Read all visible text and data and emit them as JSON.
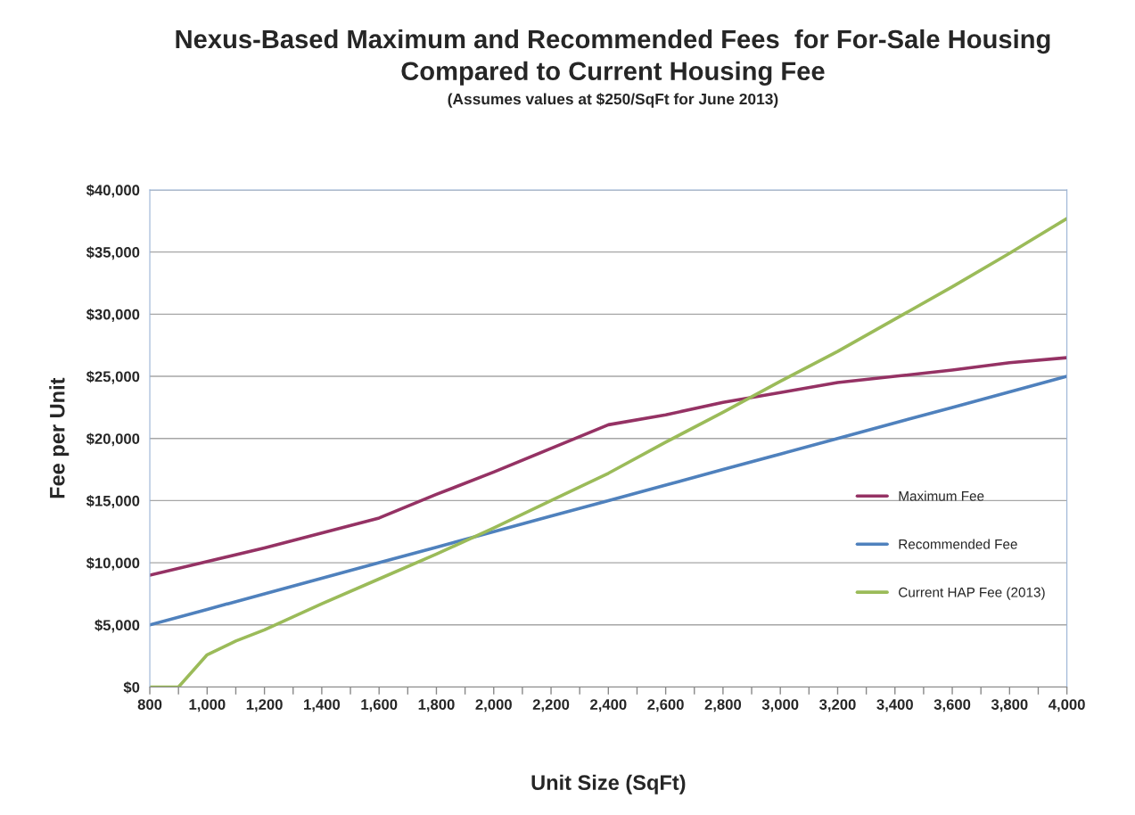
{
  "chart_data": {
    "type": "line",
    "title": "Nexus-Based Maximum and Recommended Fees  for For-Sale Housing\nCompared to Current Housing Fee",
    "subtitle": "(Assumes values at $250/SqFt for June 2013)",
    "xlabel": "Unit Size (SqFt)",
    "ylabel": "Fee per Unit",
    "series": [
      {
        "name": "Maximum Fee",
        "color": "#953264",
        "x": [
          800,
          1000,
          1200,
          1400,
          1600,
          1800,
          2000,
          2200,
          2400,
          2600,
          2800,
          3000,
          3200,
          3400,
          3600,
          3800,
          4000
        ],
        "values": [
          9000,
          10100,
          11200,
          12400,
          13600,
          15500,
          17300,
          19200,
          21100,
          21900,
          22900,
          23700,
          24500,
          25000,
          25500,
          26100,
          26500
        ]
      },
      {
        "name": "Recommended Fee",
        "color": "#4f81bd",
        "x": [
          800,
          1000,
          1200,
          1400,
          1600,
          1800,
          2000,
          2200,
          2400,
          2600,
          2800,
          3000,
          3200,
          3400,
          3600,
          3800,
          4000
        ],
        "values": [
          5000,
          6250,
          7500,
          8750,
          10000,
          11250,
          12500,
          13750,
          15000,
          16250,
          17500,
          18750,
          20000,
          21250,
          22500,
          23750,
          25000
        ]
      },
      {
        "name": "Current HAP Fee (2013)",
        "color": "#9bbb59",
        "x": [
          800,
          900,
          1000,
          1100,
          1200,
          1400,
          1600,
          1800,
          2000,
          2200,
          2400,
          2600,
          2800,
          3000,
          3200,
          3400,
          3600,
          3800,
          4000
        ],
        "values": [
          0,
          0,
          2600,
          3700,
          4600,
          6700,
          8700,
          10700,
          12800,
          15000,
          17200,
          19700,
          22100,
          24600,
          27000,
          29600,
          32200,
          34900,
          37700
        ]
      }
    ],
    "xlim": [
      800,
      4000
    ],
    "xticks": [
      {
        "value": 800,
        "label": "800"
      },
      {
        "value": 900,
        "label": null
      },
      {
        "value": 1000,
        "label": "1,000"
      },
      {
        "value": 1100,
        "label": null
      },
      {
        "value": 1200,
        "label": "1,200"
      },
      {
        "value": 1300,
        "label": null
      },
      {
        "value": 1400,
        "label": "1,400"
      },
      {
        "value": 1500,
        "label": null
      },
      {
        "value": 1600,
        "label": "1,600"
      },
      {
        "value": 1700,
        "label": null
      },
      {
        "value": 1800,
        "label": "1,800"
      },
      {
        "value": 1900,
        "label": null
      },
      {
        "value": 2000,
        "label": "2,000"
      },
      {
        "value": 2100,
        "label": null
      },
      {
        "value": 2200,
        "label": "2,200"
      },
      {
        "value": 2300,
        "label": null
      },
      {
        "value": 2400,
        "label": "2,400"
      },
      {
        "value": 2500,
        "label": null
      },
      {
        "value": 2600,
        "label": "2,600"
      },
      {
        "value": 2700,
        "label": null
      },
      {
        "value": 2800,
        "label": "2,800"
      },
      {
        "value": 2900,
        "label": null
      },
      {
        "value": 3000,
        "label": "3,000"
      },
      {
        "value": 3100,
        "label": null
      },
      {
        "value": 3200,
        "label": "3,200"
      },
      {
        "value": 3300,
        "label": null
      },
      {
        "value": 3400,
        "label": "3,400"
      },
      {
        "value": 3500,
        "label": null
      },
      {
        "value": 3600,
        "label": "3,600"
      },
      {
        "value": 3700,
        "label": null
      },
      {
        "value": 3800,
        "label": "3,800"
      },
      {
        "value": 3900,
        "label": null
      },
      {
        "value": 4000,
        "label": "4,000"
      }
    ],
    "ylim": [
      0,
      40000
    ],
    "yticks": [
      {
        "value": 0,
        "label": "$0"
      },
      {
        "value": 5000,
        "label": "$5,000"
      },
      {
        "value": 10000,
        "label": "$10,000"
      },
      {
        "value": 15000,
        "label": "$15,000"
      },
      {
        "value": 20000,
        "label": "$20,000"
      },
      {
        "value": 25000,
        "label": "$25,000"
      },
      {
        "value": 30000,
        "label": "$30,000"
      },
      {
        "value": 35000,
        "label": "$35,000"
      },
      {
        "value": 40000,
        "label": "$40,000"
      }
    ],
    "grid": "y",
    "legend": "right",
    "marker": "none",
    "line_style": "solid"
  }
}
